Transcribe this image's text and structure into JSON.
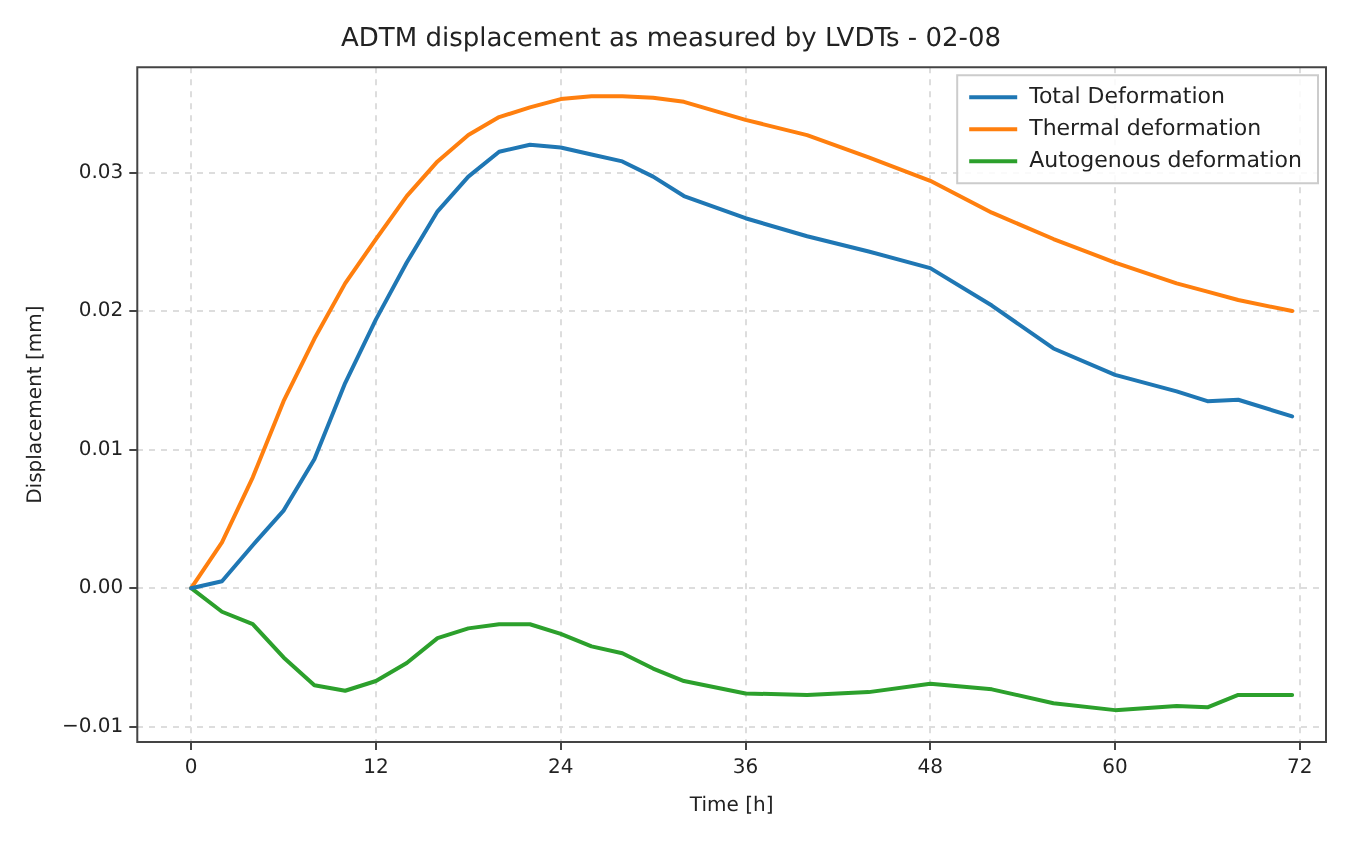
{
  "chart_data": {
    "type": "line",
    "title": "ADTM displacement as measured by LVDTs - 02-08",
    "xlabel": "Time [h]",
    "ylabel": "Displacement [mm]",
    "x": [
      0,
      2,
      4,
      6,
      8,
      10,
      12,
      14,
      16,
      18,
      20,
      22,
      24,
      26,
      28,
      30,
      32,
      36,
      40,
      44,
      48,
      52,
      56,
      60,
      64,
      66,
      68,
      71.5
    ],
    "series": [
      {
        "name": "Total Deformation",
        "color": "#1f77b4",
        "values": [
          0,
          0.0005,
          0.0031,
          0.0056,
          0.0093,
          0.0148,
          0.0194,
          0.0235,
          0.0272,
          0.0297,
          0.0315,
          0.032,
          0.0318,
          0.0313,
          0.0308,
          0.0297,
          0.0283,
          0.0267,
          0.0254,
          0.0243,
          0.0231,
          0.0204,
          0.0173,
          0.0154,
          0.0142,
          0.0135,
          0.0136,
          0.0124
        ]
      },
      {
        "name": "Thermal deformation",
        "color": "#ff7f0e",
        "values": [
          0,
          0.0033,
          0.008,
          0.0135,
          0.018,
          0.022,
          0.0252,
          0.0283,
          0.0308,
          0.0327,
          0.034,
          0.0347,
          0.0353,
          0.0355,
          0.0355,
          0.0354,
          0.0351,
          0.0338,
          0.0327,
          0.0311,
          0.0294,
          0.0271,
          0.0252,
          0.0235,
          0.022,
          0.0214,
          0.0208,
          0.02
        ]
      },
      {
        "name": "Autogenous deformation",
        "color": "#2ca02c",
        "values": [
          0,
          -0.0017,
          -0.0026,
          -0.005,
          -0.007,
          -0.0074,
          -0.0067,
          -0.0054,
          -0.0036,
          -0.0029,
          -0.0026,
          -0.0026,
          -0.0033,
          -0.0042,
          -0.0047,
          -0.0058,
          -0.0067,
          -0.0076,
          -0.0077,
          -0.0075,
          -0.0069,
          -0.0073,
          -0.0083,
          -0.0088,
          -0.0085,
          -0.0086,
          -0.0077,
          -0.0077
        ]
      }
    ],
    "xlim": [
      -3.5,
      73.7
    ],
    "ylim": [
      -0.0111,
      0.0376
    ],
    "xticks": [
      0,
      12,
      24,
      36,
      48,
      60,
      72
    ],
    "yticks": [
      {
        "value": -0.01,
        "label": "−0.01"
      },
      {
        "value": 0,
        "label": "0.00"
      },
      {
        "value": 0.01,
        "label": "0.01"
      },
      {
        "value": 0.02,
        "label": "0.02"
      },
      {
        "value": 0.03,
        "label": "0.03"
      }
    ],
    "grid": true,
    "legend": "top right",
    "marker": "none",
    "line_style": "solid"
  }
}
